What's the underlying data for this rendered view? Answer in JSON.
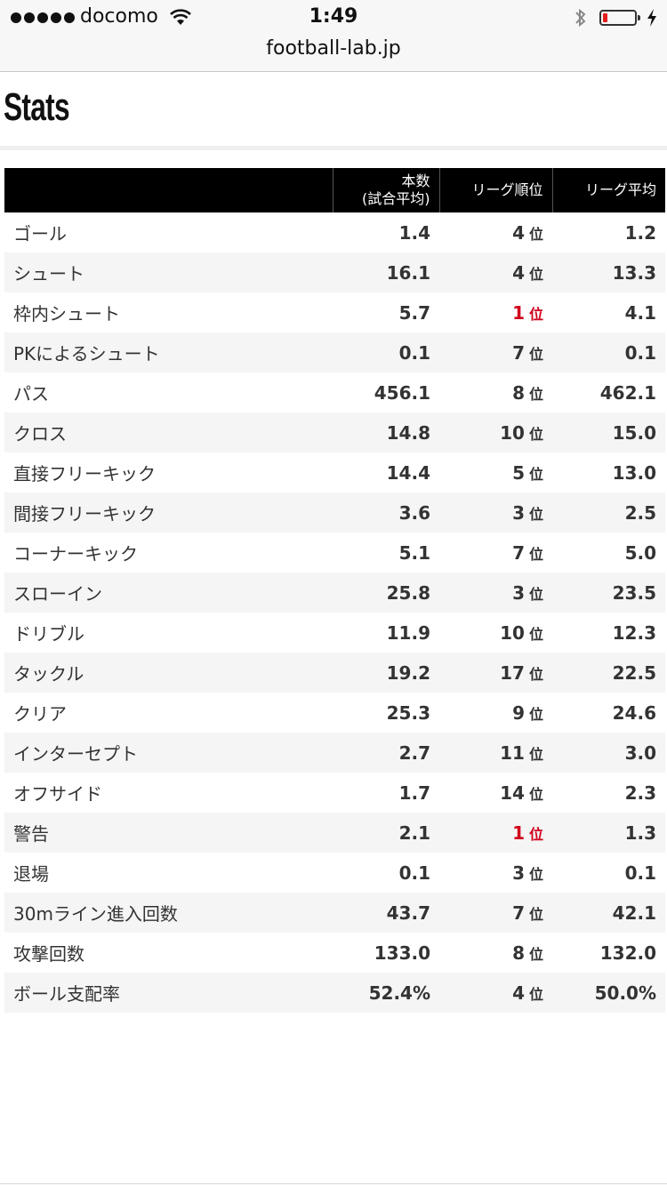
{
  "status_bar": {
    "carrier": "docomo",
    "time": "1:49",
    "battery_level": 0.15,
    "battery_color": "#e41b1b"
  },
  "address_bar": {
    "url": "football-lab.jp"
  },
  "page": {
    "title": "Stats"
  },
  "table": {
    "headers": {
      "label": "",
      "value_line1": "本数",
      "value_line2": "(試合平均)",
      "rank": "リーグ順位",
      "average": "リーグ平均"
    },
    "rank_unit": "位",
    "highlight_color": "#d0021b",
    "rows": [
      {
        "label": "ゴール",
        "value": "1.4",
        "rank": "4",
        "average": "1.2"
      },
      {
        "label": "シュート",
        "value": "16.1",
        "rank": "4",
        "average": "13.3"
      },
      {
        "label": "枠内シュート",
        "value": "5.7",
        "rank": "1",
        "average": "4.1"
      },
      {
        "label": "PKによるシュート",
        "value": "0.1",
        "rank": "7",
        "average": "0.1"
      },
      {
        "label": "パス",
        "value": "456.1",
        "rank": "8",
        "average": "462.1"
      },
      {
        "label": "クロス",
        "value": "14.8",
        "rank": "10",
        "average": "15.0"
      },
      {
        "label": "直接フリーキック",
        "value": "14.4",
        "rank": "5",
        "average": "13.0"
      },
      {
        "label": "間接フリーキック",
        "value": "3.6",
        "rank": "3",
        "average": "2.5"
      },
      {
        "label": "コーナーキック",
        "value": "5.1",
        "rank": "7",
        "average": "5.0"
      },
      {
        "label": "スローイン",
        "value": "25.8",
        "rank": "3",
        "average": "23.5"
      },
      {
        "label": "ドリブル",
        "value": "11.9",
        "rank": "10",
        "average": "12.3"
      },
      {
        "label": "タックル",
        "value": "19.2",
        "rank": "17",
        "average": "22.5"
      },
      {
        "label": "クリア",
        "value": "25.3",
        "rank": "9",
        "average": "24.6"
      },
      {
        "label": "インターセプト",
        "value": "2.7",
        "rank": "11",
        "average": "3.0"
      },
      {
        "label": "オフサイド",
        "value": "1.7",
        "rank": "14",
        "average": "2.3"
      },
      {
        "label": "警告",
        "value": "2.1",
        "rank": "1",
        "average": "1.3"
      },
      {
        "label": "退場",
        "value": "0.1",
        "rank": "3",
        "average": "0.1"
      },
      {
        "label": "30mライン進入回数",
        "value": "43.7",
        "rank": "7",
        "average": "42.1"
      },
      {
        "label": "攻撃回数",
        "value": "133.0",
        "rank": "8",
        "average": "132.0"
      },
      {
        "label": "ボール支配率",
        "value": "52.4%",
        "rank": "4",
        "average": "50.0%"
      }
    ]
  }
}
